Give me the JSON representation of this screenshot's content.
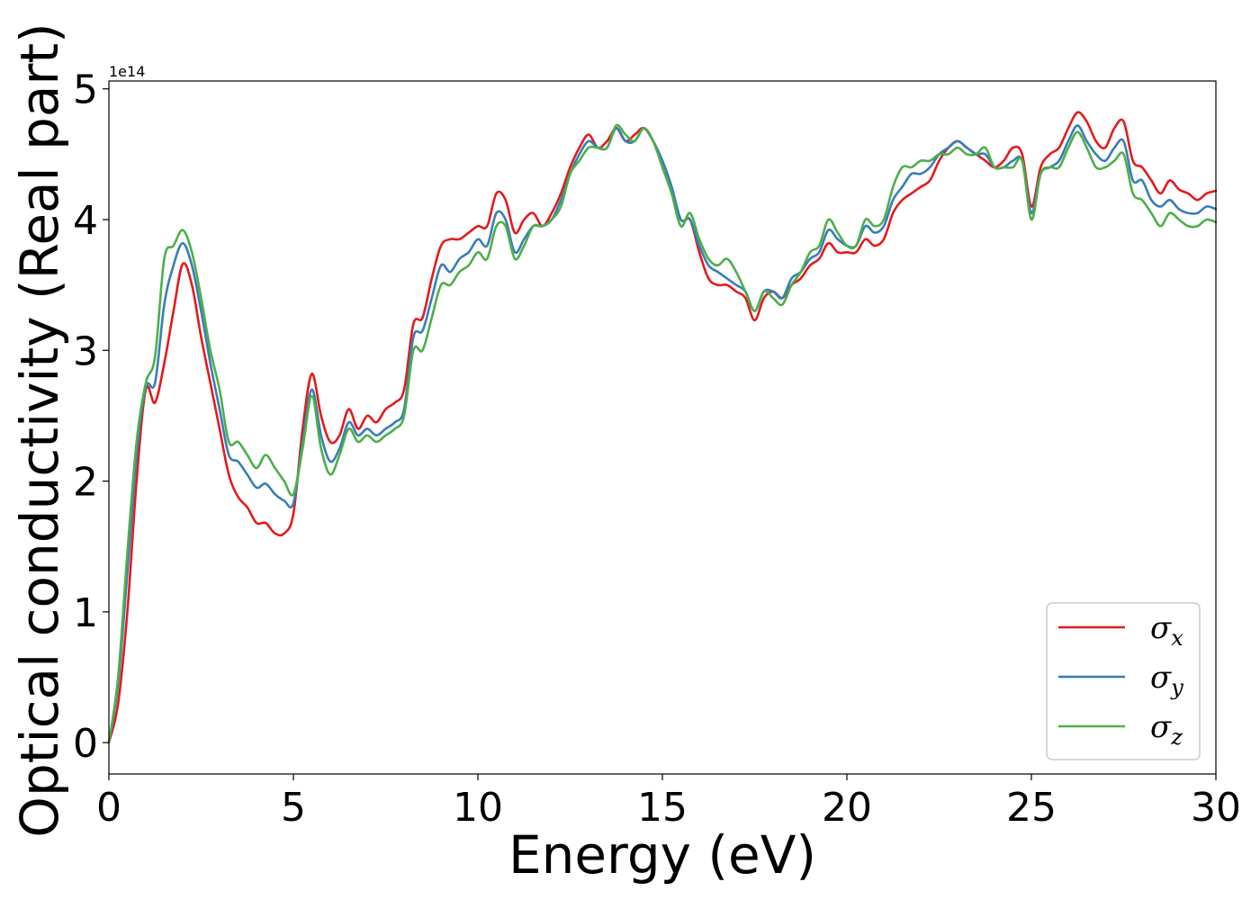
{
  "chart_data": {
    "type": "line",
    "title": "",
    "xlabel": "Energy (eV)",
    "ylabel": "Optical conductivity (Real part)",
    "y_offset_label": "1e14",
    "xlim": [
      0,
      30
    ],
    "ylim": [
      -0.24,
      5.06
    ],
    "y_scale_factor": 100000000000000.0,
    "x_ticks": [
      0,
      5,
      10,
      15,
      20,
      25,
      30
    ],
    "x_tick_labels": [
      "0",
      "5",
      "10",
      "15",
      "20",
      "25",
      "30"
    ],
    "y_ticks": [
      0,
      1,
      2,
      3,
      4,
      5
    ],
    "y_tick_labels": [
      "0",
      "1",
      "2",
      "3",
      "4",
      "5"
    ],
    "grid": false,
    "legend_position": "bottom-right",
    "x": [
      0,
      0.25,
      0.5,
      0.75,
      1.0,
      1.25,
      1.5,
      1.75,
      2.0,
      2.25,
      2.5,
      2.75,
      3.0,
      3.25,
      3.5,
      3.75,
      4.0,
      4.25,
      4.5,
      4.75,
      5.0,
      5.25,
      5.5,
      5.75,
      6.0,
      6.25,
      6.5,
      6.75,
      7.0,
      7.25,
      7.5,
      7.75,
      8.0,
      8.25,
      8.5,
      8.75,
      9.0,
      9.25,
      9.5,
      9.75,
      10.0,
      10.25,
      10.5,
      10.75,
      11.0,
      11.25,
      11.5,
      11.75,
      12.0,
      12.25,
      12.5,
      12.75,
      13.0,
      13.25,
      13.5,
      13.75,
      14.0,
      14.25,
      14.5,
      14.75,
      15.0,
      15.25,
      15.5,
      15.75,
      16.0,
      16.25,
      16.5,
      16.75,
      17.0,
      17.25,
      17.5,
      17.75,
      18.0,
      18.25,
      18.5,
      18.75,
      19.0,
      19.25,
      19.5,
      19.75,
      20.0,
      20.25,
      20.5,
      20.75,
      21.0,
      21.25,
      21.5,
      21.75,
      22.0,
      22.25,
      22.5,
      22.75,
      23.0,
      23.25,
      23.5,
      23.75,
      24.0,
      24.25,
      24.5,
      24.75,
      25.0,
      25.25,
      25.5,
      25.75,
      26.0,
      26.25,
      26.5,
      26.75,
      27.0,
      27.25,
      27.5,
      27.75,
      28.0,
      28.25,
      28.5,
      28.75,
      29.0,
      29.25,
      29.5,
      29.75,
      30.0
    ],
    "series": [
      {
        "name": "σ",
        "subscript": "x",
        "color": "#e41a1c",
        "y": [
          0.0,
          0.3,
          1.0,
          2.0,
          2.7,
          2.6,
          2.9,
          3.3,
          3.66,
          3.5,
          3.1,
          2.75,
          2.4,
          2.05,
          1.88,
          1.8,
          1.68,
          1.68,
          1.6,
          1.6,
          1.75,
          2.4,
          2.82,
          2.5,
          2.3,
          2.35,
          2.55,
          2.4,
          2.5,
          2.45,
          2.55,
          2.6,
          2.7,
          3.2,
          3.25,
          3.55,
          3.8,
          3.85,
          3.85,
          3.9,
          3.95,
          3.95,
          4.2,
          4.15,
          3.9,
          4.0,
          4.05,
          3.95,
          4.05,
          4.2,
          4.4,
          4.55,
          4.65,
          4.55,
          4.6,
          4.7,
          4.6,
          4.65,
          4.7,
          4.6,
          4.45,
          4.25,
          4.0,
          4.0,
          3.75,
          3.55,
          3.5,
          3.5,
          3.45,
          3.4,
          3.23,
          3.4,
          3.45,
          3.4,
          3.5,
          3.55,
          3.65,
          3.7,
          3.82,
          3.75,
          3.75,
          3.75,
          3.85,
          3.8,
          3.85,
          4.05,
          4.15,
          4.2,
          4.25,
          4.3,
          4.45,
          4.55,
          4.6,
          4.55,
          4.5,
          4.45,
          4.4,
          4.45,
          4.55,
          4.5,
          4.1,
          4.4,
          4.5,
          4.55,
          4.7,
          4.82,
          4.75,
          4.6,
          4.55,
          4.7,
          4.75,
          4.45,
          4.4,
          4.3,
          4.2,
          4.3,
          4.23,
          4.2,
          4.15,
          4.2,
          4.22
        ]
      },
      {
        "name": "σ",
        "subscript": "y",
        "color": "#377eb8",
        "y": [
          0.0,
          0.45,
          1.3,
          2.2,
          2.72,
          2.75,
          3.35,
          3.65,
          3.82,
          3.65,
          3.3,
          2.9,
          2.55,
          2.2,
          2.15,
          2.05,
          1.95,
          1.98,
          1.9,
          1.85,
          1.83,
          2.3,
          2.7,
          2.35,
          2.15,
          2.25,
          2.45,
          2.35,
          2.4,
          2.35,
          2.4,
          2.45,
          2.55,
          3.1,
          3.15,
          3.4,
          3.65,
          3.6,
          3.7,
          3.75,
          3.85,
          3.8,
          4.05,
          4.0,
          3.75,
          3.85,
          3.95,
          3.95,
          4.0,
          4.15,
          4.35,
          4.5,
          4.6,
          4.55,
          4.55,
          4.7,
          4.6,
          4.6,
          4.7,
          4.6,
          4.45,
          4.25,
          4.0,
          4.0,
          3.8,
          3.65,
          3.6,
          3.55,
          3.5,
          3.45,
          3.3,
          3.45,
          3.45,
          3.4,
          3.55,
          3.6,
          3.7,
          3.75,
          3.92,
          3.85,
          3.8,
          3.8,
          3.95,
          3.9,
          3.95,
          4.15,
          4.25,
          4.35,
          4.35,
          4.4,
          4.5,
          4.55,
          4.6,
          4.55,
          4.5,
          4.5,
          4.4,
          4.4,
          4.45,
          4.45,
          4.05,
          4.35,
          4.4,
          4.45,
          4.6,
          4.72,
          4.6,
          4.5,
          4.45,
          4.55,
          4.6,
          4.3,
          4.3,
          4.15,
          4.1,
          4.15,
          4.08,
          4.05,
          4.05,
          4.1,
          4.08
        ]
      },
      {
        "name": "σ",
        "subscript": "z",
        "color": "#4daf4a",
        "y": [
          0.0,
          0.5,
          1.45,
          2.3,
          2.75,
          2.95,
          3.7,
          3.8,
          3.92,
          3.75,
          3.4,
          3.0,
          2.7,
          2.3,
          2.3,
          2.2,
          2.1,
          2.2,
          2.1,
          2.0,
          1.9,
          2.25,
          2.65,
          2.25,
          2.05,
          2.2,
          2.4,
          2.3,
          2.35,
          2.3,
          2.35,
          2.4,
          2.5,
          3.0,
          3.0,
          3.25,
          3.5,
          3.5,
          3.6,
          3.65,
          3.75,
          3.7,
          3.95,
          3.95,
          3.7,
          3.8,
          3.95,
          3.95,
          4.0,
          4.1,
          4.35,
          4.45,
          4.55,
          4.55,
          4.55,
          4.72,
          4.65,
          4.6,
          4.7,
          4.6,
          4.4,
          4.2,
          3.95,
          4.05,
          3.85,
          3.7,
          3.65,
          3.7,
          3.6,
          3.45,
          3.3,
          3.45,
          3.4,
          3.35,
          3.5,
          3.6,
          3.75,
          3.8,
          4.0,
          3.9,
          3.8,
          3.8,
          4.0,
          3.95,
          4.0,
          4.25,
          4.4,
          4.4,
          4.45,
          4.45,
          4.5,
          4.5,
          4.55,
          4.5,
          4.5,
          4.55,
          4.4,
          4.4,
          4.4,
          4.45,
          4.0,
          4.35,
          4.4,
          4.4,
          4.55,
          4.67,
          4.55,
          4.4,
          4.4,
          4.45,
          4.5,
          4.2,
          4.15,
          4.05,
          3.95,
          4.05,
          4.0,
          3.95,
          3.95,
          4.0,
          3.98
        ]
      }
    ]
  }
}
